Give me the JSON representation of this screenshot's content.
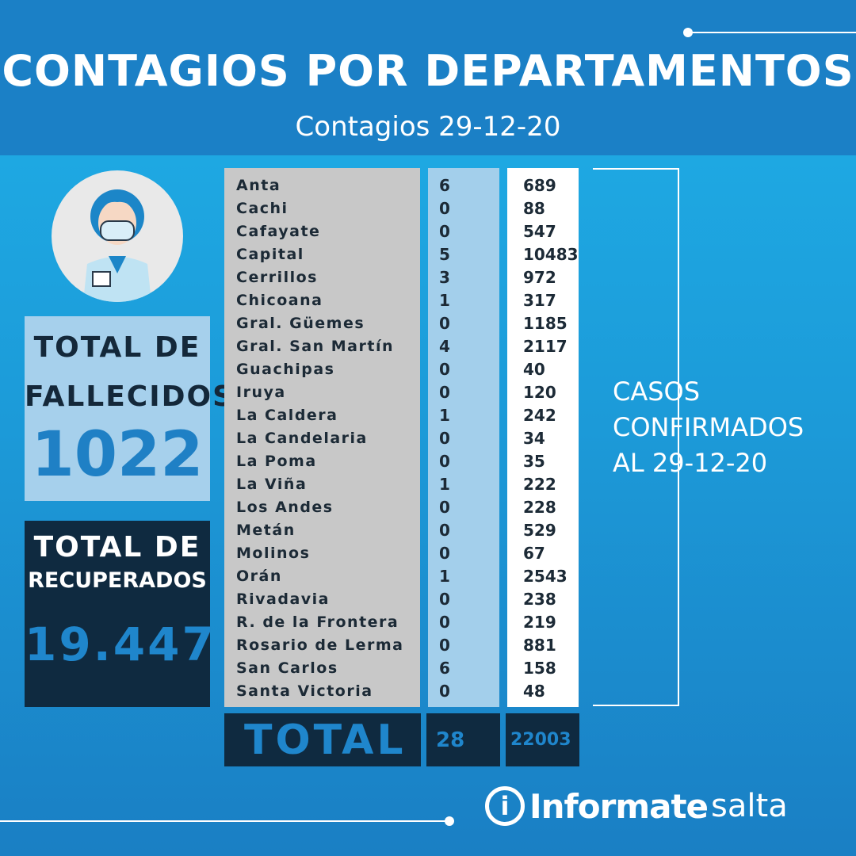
{
  "header": {
    "title": "CONTAGIOS POR DEPARTAMENTOS",
    "subtitle": "Contagios 29-12-20"
  },
  "fallecidos": {
    "label1": "TOTAL DE",
    "label2": "FALLECIDOS",
    "value": "1022"
  },
  "recuperados": {
    "label1": "TOTAL DE",
    "label2": "RECUPERADOS",
    "value": "19.447"
  },
  "table": {
    "rows": [
      {
        "name": "Anta",
        "new": "6",
        "total": "689"
      },
      {
        "name": "Cachi",
        "new": "0",
        "total": "88"
      },
      {
        "name": "Cafayate",
        "new": "0",
        "total": "547"
      },
      {
        "name": "Capital",
        "new": "5",
        "total": "10483"
      },
      {
        "name": "Cerrillos",
        "new": "3",
        "total": "972"
      },
      {
        "name": "Chicoana",
        "new": "1",
        "total": "317"
      },
      {
        "name": "Gral. Güemes",
        "new": "0",
        "total": "1185"
      },
      {
        "name": "Gral. San Martín",
        "new": "4",
        "total": "2117"
      },
      {
        "name": "Guachipas",
        "new": "0",
        "total": "40"
      },
      {
        "name": "Iruya",
        "new": "0",
        "total": "120"
      },
      {
        "name": "La Caldera",
        "new": "1",
        "total": "242"
      },
      {
        "name": "La Candelaria",
        "new": "0",
        "total": "34"
      },
      {
        "name": "La Poma",
        "new": "0",
        "total": "35"
      },
      {
        "name": "La Viña",
        "new": "1",
        "total": "222"
      },
      {
        "name": "Los Andes",
        "new": "0",
        "total": "228"
      },
      {
        "name": "Metán",
        "new": "0",
        "total": "529"
      },
      {
        "name": "Molinos",
        "new": "0",
        "total": "67"
      },
      {
        "name": "Orán",
        "new": "1",
        "total": "2543"
      },
      {
        "name": "Rivadavia",
        "new": "0",
        "total": "238"
      },
      {
        "name": "R. de la Frontera",
        "new": "0",
        "total": "219"
      },
      {
        "name": "Rosario de Lerma",
        "new": "0",
        "total": "881"
      },
      {
        "name": "San Carlos",
        "new": "6",
        "total": "158"
      },
      {
        "name": "Santa Victoria",
        "new": "0",
        "total": "48"
      }
    ],
    "total_label": "TOTAL",
    "total_new": "28",
    "total_cases": "22003"
  },
  "side_note": {
    "line1": "CASOS",
    "line2": "CONFIRMADOS",
    "line3": "AL 29-12-20"
  },
  "logo": {
    "brand": "Informate",
    "suffix": "salta",
    "icon": "i"
  },
  "colors": {
    "header": "#1b80c6",
    "dark": "#0f2a40",
    "accent": "#1f86cc"
  }
}
